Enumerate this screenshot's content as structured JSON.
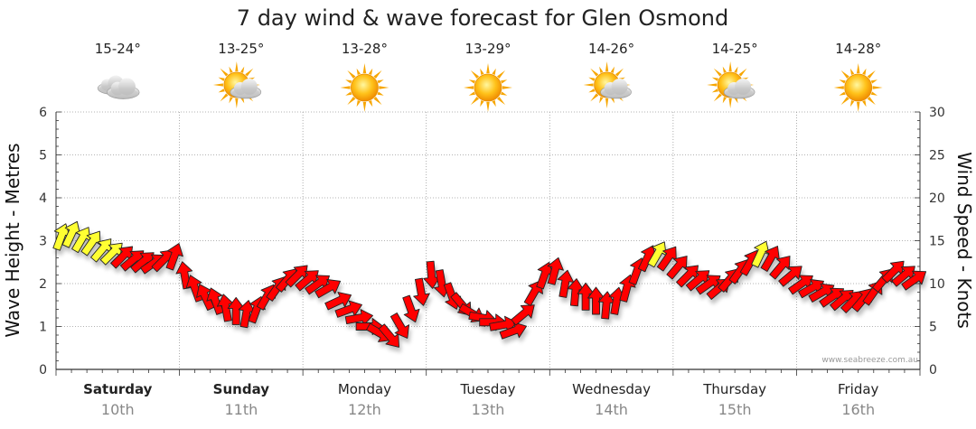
{
  "chart_data": {
    "type": "line",
    "title": "7 day wind & wave forecast for Glen Osmond",
    "ylabel_left": "Wave Height - Metres",
    "ylabel_right": "Wind Speed - Knots",
    "ylim_left": [
      0,
      6
    ],
    "ylim_right": [
      0,
      30
    ],
    "yticks_left": [
      "0",
      "1",
      "2",
      "3",
      "4",
      "5",
      "6"
    ],
    "yticks_right": [
      "0",
      "5",
      "10",
      "15",
      "20",
      "25",
      "30"
    ],
    "credit": "www.seabreeze.com.au",
    "colors": {
      "calm": "#ffff33",
      "strong": "#ff0000",
      "outline": "#222222"
    },
    "days": [
      {
        "name": "Saturday",
        "date": "10th",
        "temp": "15-24°",
        "icon": "cloudy-icon",
        "bold": true
      },
      {
        "name": "Sunday",
        "date": "11th",
        "temp": "13-25°",
        "icon": "sun-cloud-icon",
        "bold": true
      },
      {
        "name": "Monday",
        "date": "12th",
        "temp": "13-28°",
        "icon": "sun-icon",
        "bold": false
      },
      {
        "name": "Tuesday",
        "date": "13th",
        "temp": "13-29°",
        "icon": "sun-icon",
        "bold": false
      },
      {
        "name": "Wednesday",
        "date": "14th",
        "temp": "14-26°",
        "icon": "sun-cloud-icon",
        "bold": false
      },
      {
        "name": "Thursday",
        "date": "15th",
        "temp": "14-25°",
        "icon": "sun-cloud-icon",
        "bold": false
      },
      {
        "name": "Friday",
        "date": "16th",
        "temp": "14-28°",
        "icon": "sun-icon",
        "bold": false
      }
    ],
    "series": [
      {
        "name": "Wind Speed",
        "units": "knots",
        "values": [
          15.5,
          15.8,
          15.2,
          14.8,
          14.0,
          13.6,
          13.2,
          12.8,
          12.6,
          12.4,
          12.8,
          13.2,
          11.0,
          9.5,
          8.5,
          8.0,
          7.2,
          6.8,
          6.5,
          7.0,
          8.5,
          9.5,
          10.5,
          11.0,
          10.5,
          10.0,
          9.5,
          8.0,
          7.0,
          6.0,
          5.0,
          4.2,
          3.8,
          5.0,
          7.0,
          9.0,
          11.0,
          10.0,
          8.5,
          7.5,
          6.5,
          6.0,
          5.5,
          5.2,
          4.5,
          6.5,
          9.0,
          11.0,
          11.5,
          10.0,
          9.0,
          8.5,
          8.0,
          7.5,
          8.0,
          9.5,
          11.5,
          13.0,
          13.5,
          13.0,
          12.0,
          11.0,
          10.5,
          10.0,
          9.5,
          10.5,
          11.5,
          12.5,
          13.5,
          13.0,
          12.0,
          11.0,
          10.0,
          9.5,
          9.0,
          8.5,
          8.2,
          8.0,
          8.2,
          9.0,
          10.5,
          11.5,
          11.0,
          10.5
        ],
        "direction_deg": [
          200,
          205,
          210,
          215,
          220,
          225,
          225,
          230,
          230,
          235,
          225,
          200,
          170,
          160,
          155,
          160,
          170,
          180,
          190,
          200,
          210,
          215,
          220,
          225,
          230,
          235,
          240,
          245,
          250,
          260,
          270,
          300,
          320,
          330,
          340,
          350,
          355,
          350,
          340,
          320,
          300,
          280,
          270,
          260,
          250,
          230,
          210,
          200,
          195,
          190,
          185,
          180,
          180,
          185,
          190,
          195,
          200,
          205,
          210,
          215,
          220,
          225,
          230,
          235,
          230,
          220,
          215,
          210,
          205,
          210,
          220,
          230,
          235,
          240,
          240,
          235,
          230,
          225,
          220,
          215,
          220,
          225,
          230,
          235
        ]
      }
    ]
  }
}
